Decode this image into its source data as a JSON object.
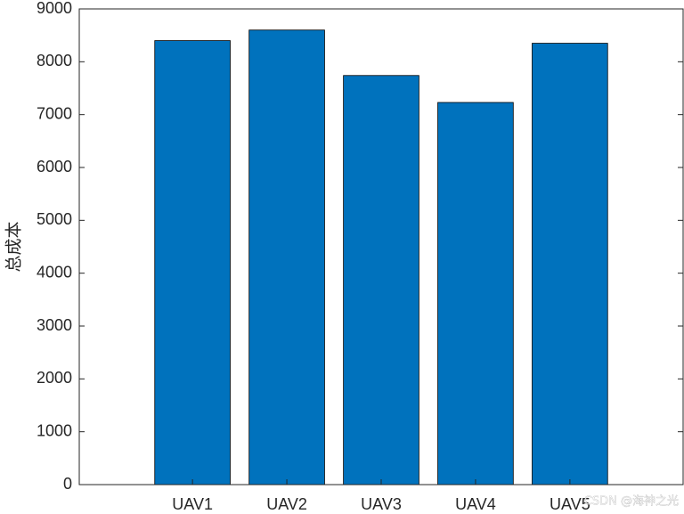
{
  "chart_data": {
    "type": "bar",
    "ylabel": "总成本",
    "categories": [
      "UAV1",
      "UAV2",
      "UAV3",
      "UAV4",
      "UAV5"
    ],
    "values": [
      8400,
      8600,
      7740,
      7230,
      8350
    ],
    "color": "#0072bd",
    "ylim": [
      0,
      9000
    ],
    "yticks": [
      0,
      1000,
      2000,
      3000,
      4000,
      5000,
      6000,
      7000,
      8000,
      9000
    ],
    "grid": false,
    "watermark": "CSDN @海神之光"
  }
}
